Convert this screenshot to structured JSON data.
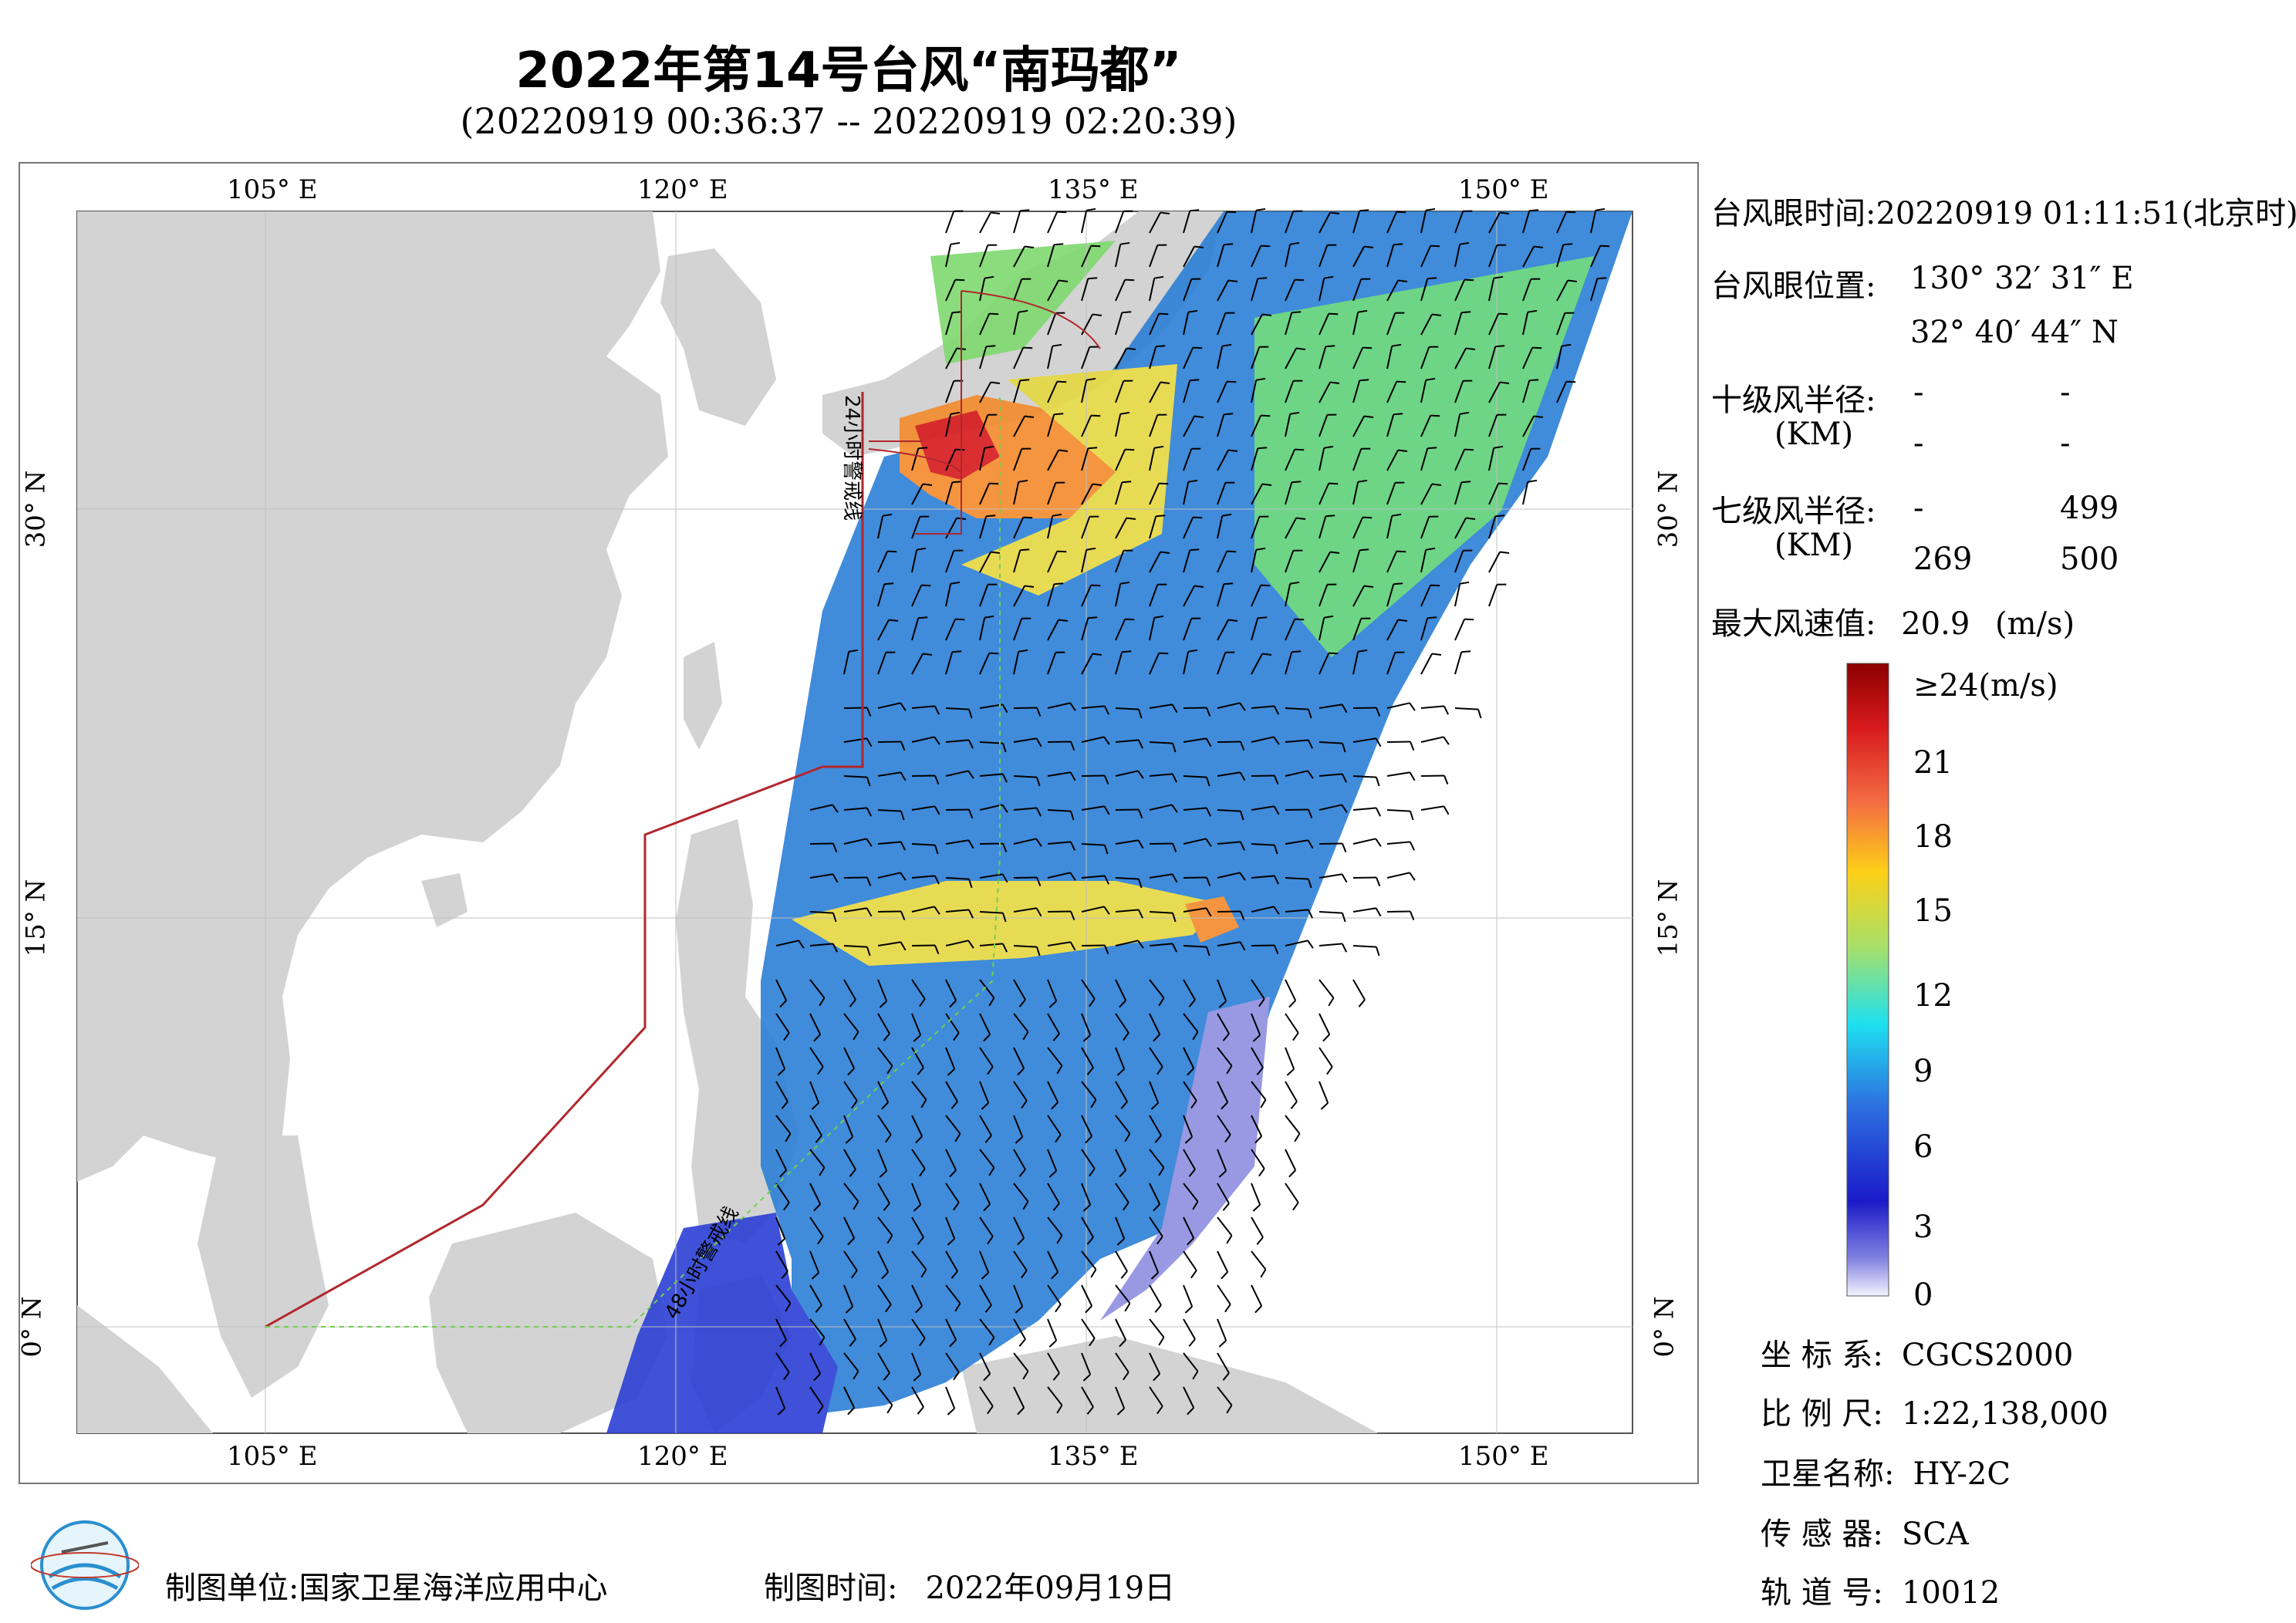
{
  "title": "2022年第14号台风“南玛都”",
  "subtitle": "(20220919 00:36:37 -- 20220919 02:20:39)",
  "map": {
    "lon_labels": [
      "105° E",
      "120° E",
      "135° E",
      "150° E"
    ],
    "lat_labels": [
      "30° N",
      "15° N",
      "0° N"
    ],
    "warning_line_24h": "24小时警戒线",
    "warning_line_48h": "48小时警戒线",
    "colors": {
      "land": "#d3d3d3",
      "ocean": "#ffffff",
      "warning_line": "#b0272d",
      "warning_line_48h": "#6fcf4f"
    }
  },
  "info": {
    "eye_time_label": "台风眼时间:",
    "eye_time": "20220919 01:11:51(北京时)",
    "eye_position_label": "台风眼位置:",
    "eye_lon": "130° 32′ 31″ E",
    "eye_lat": "32° 40′ 44″ N",
    "r10_label": "十级风半径:",
    "r10_unit": "(KM)",
    "r10_values": [
      "-",
      "-",
      "-",
      "-"
    ],
    "r7_label": "七级风半径:",
    "r7_unit": "(KM)",
    "r7_values": [
      "-",
      "499",
      "269",
      "500"
    ],
    "max_wind_label": "最大风速值:",
    "max_wind": "20.9",
    "max_wind_unit": "(m/s)"
  },
  "colorbar": {
    "ticks": [
      "≥24(m/s)",
      "21",
      "18",
      "15",
      "12",
      "9",
      "6",
      "3",
      "0"
    ],
    "colors": [
      "#8b0000",
      "#d7191c",
      "#f46d43",
      "#fdae61",
      "#fee08b",
      "#d9ef8b",
      "#a6d96a",
      "#66c2a5",
      "#1ee0f0",
      "#3288bd",
      "#2040d0",
      "#2020c0",
      "#8080e0",
      "#f0f0ff"
    ]
  },
  "meta": {
    "crs_label": "坐 标 系:",
    "crs": "CGCS2000",
    "scale_label": "比 例 尺:",
    "scale": "1:22,138,000",
    "satellite_label": "卫星名称:",
    "satellite": "HY-2C",
    "sensor_label": "传 感 器:",
    "sensor": "SCA",
    "orbit_label": "轨 道 号:",
    "orbit": "10012"
  },
  "footer": {
    "org_label": "制图单位:",
    "org": "国家卫星海洋应用中心",
    "date_label": "制图时间:",
    "date": "2022年09月19日"
  }
}
